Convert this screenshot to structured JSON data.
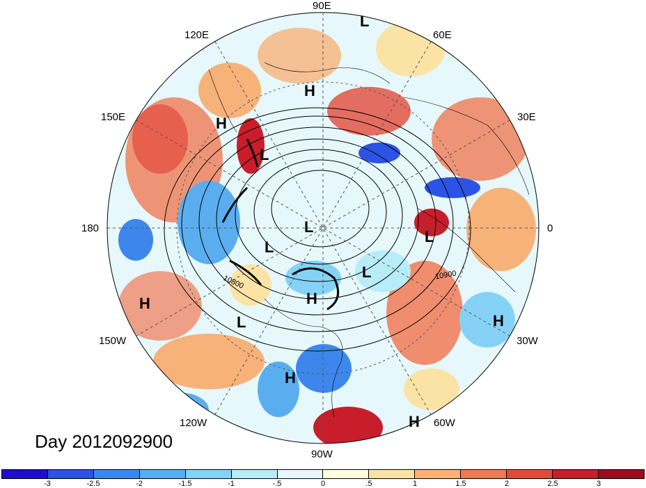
{
  "map": {
    "day_label": "Day 2012092900",
    "longitude_labels": [
      {
        "text": "90E",
        "name": "lon-90e"
      },
      {
        "text": "60E",
        "name": "lon-60e"
      },
      {
        "text": "30E",
        "name": "lon-30e"
      },
      {
        "text": "0",
        "name": "lon-0"
      },
      {
        "text": "30W",
        "name": "lon-30w"
      },
      {
        "text": "60W",
        "name": "lon-60w"
      },
      {
        "text": "90W",
        "name": "lon-90w"
      },
      {
        "text": "120W",
        "name": "lon-120w"
      },
      {
        "text": "150W",
        "name": "lon-150w"
      },
      {
        "text": "180",
        "name": "lon-180"
      },
      {
        "text": "150E",
        "name": "lon-150e"
      },
      {
        "text": "120E",
        "name": "lon-120e"
      }
    ],
    "pressure_markers": [
      {
        "type": "L"
      },
      {
        "type": "H"
      },
      {
        "type": "H"
      },
      {
        "type": "L"
      },
      {
        "type": "L"
      },
      {
        "type": "L"
      },
      {
        "type": "L"
      },
      {
        "type": "L"
      },
      {
        "type": "H"
      },
      {
        "type": "H"
      },
      {
        "type": "L"
      },
      {
        "type": "H"
      },
      {
        "type": "H"
      },
      {
        "type": "H"
      }
    ],
    "contour_labels": [
      "10800",
      "10900"
    ]
  },
  "colorbar": {
    "colors": [
      "#1e0fd0",
      "#2c52e6",
      "#3d87ec",
      "#5aaef0",
      "#86d2f6",
      "#b8ecf8",
      "#e6f8fb",
      "#fffce0",
      "#fbe3a6",
      "#f7b27a",
      "#f07a55",
      "#e44a3c",
      "#c81e2c",
      "#9a0c1e"
    ],
    "ticks": [
      "-3",
      "-2.5",
      "-2",
      "-1.5",
      "-1",
      "-.5",
      "0",
      ".5",
      "1",
      "1.5",
      "2",
      "2.5",
      "3"
    ]
  }
}
